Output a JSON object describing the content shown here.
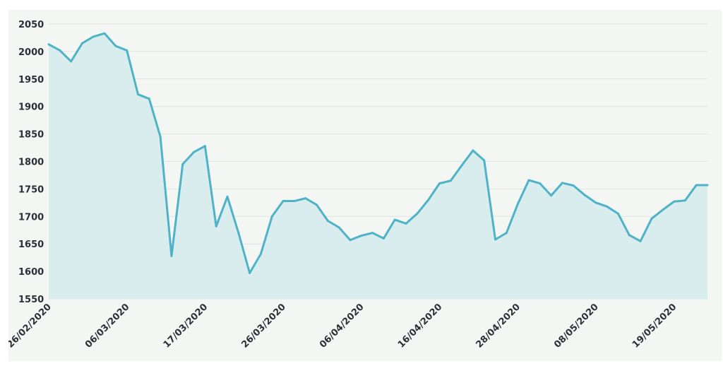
{
  "chart_data": {
    "type": "area",
    "title": "",
    "xlabel": "",
    "ylabel": "",
    "ylim": [
      1550,
      2050
    ],
    "yticks": [
      1550,
      1600,
      1650,
      1700,
      1750,
      1800,
      1850,
      1900,
      1950,
      2000,
      2050
    ],
    "xtick_labels": [
      "26/02/2020",
      "06/03/2020",
      "17/03/2020",
      "26/03/2020",
      "06/04/2020",
      "16/04/2020",
      "28/04/2020",
      "08/05/2020",
      "19/05/2020"
    ],
    "xtick_indices": [
      0,
      7,
      14,
      21,
      28,
      35,
      42,
      49,
      56
    ],
    "grid": true,
    "legend": "none",
    "colors": {
      "line": "#4fb3c8",
      "fill": "#d9ecee",
      "background": "#f4f6f3"
    },
    "series": [
      {
        "values": [
          2013,
          2002,
          1982,
          2015,
          2027,
          2033,
          2010,
          2002,
          1922,
          1914,
          1845,
          1628,
          1795,
          1817,
          1828,
          1682,
          1736,
          1670,
          1597,
          1632,
          1700,
          1728,
          1728,
          1733,
          1721,
          1692,
          1680,
          1657,
          1665,
          1670,
          1660,
          1694,
          1687,
          1705,
          1730,
          1760,
          1765,
          1793,
          1820,
          1802,
          1658,
          1670,
          1722,
          1766,
          1760,
          1738,
          1761,
          1756,
          1739,
          1725,
          1718,
          1705,
          1666,
          1655,
          1696,
          1712,
          1727,
          1729,
          1757,
          1757
        ]
      }
    ]
  }
}
